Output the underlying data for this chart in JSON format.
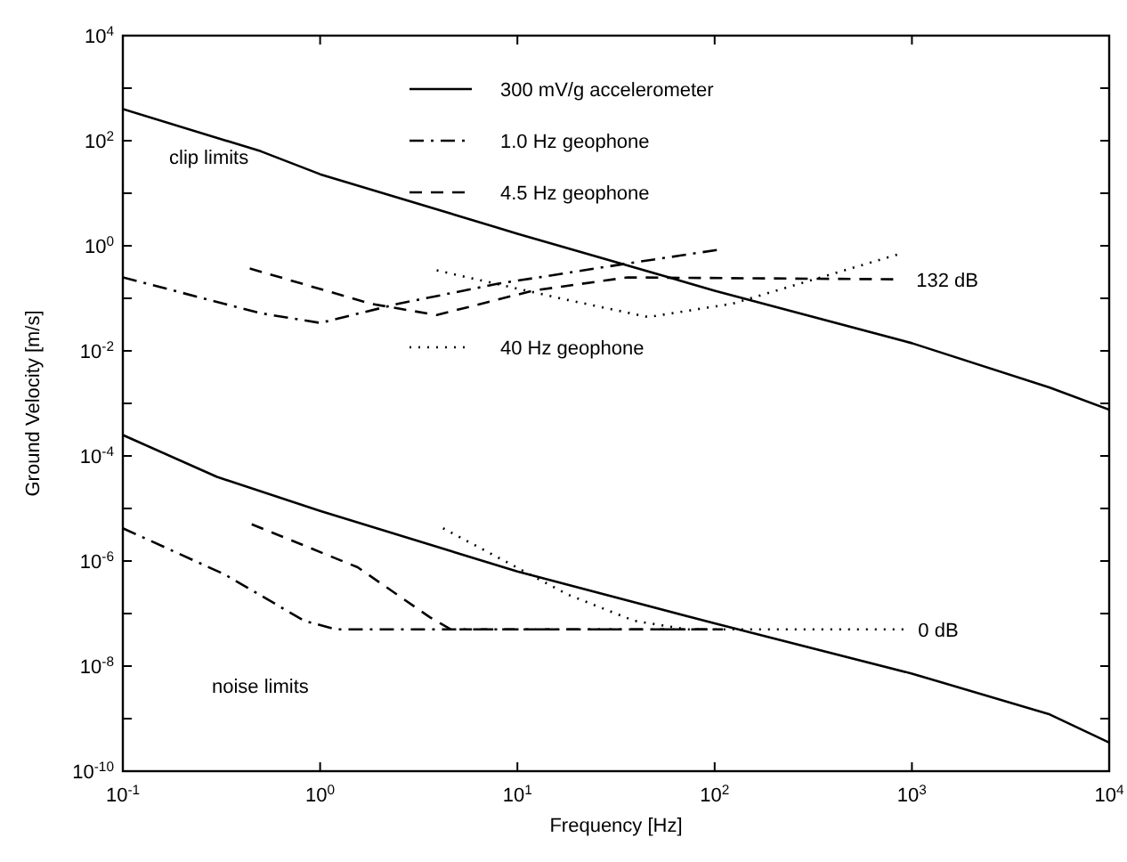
{
  "chart_data": {
    "type": "line",
    "xlabel": "Frequency [Hz]",
    "ylabel": "Ground Velocity [m/s]",
    "log": "xy",
    "grid": false,
    "legend": "top",
    "xlim": [
      0.1,
      10000
    ],
    "ylim": [
      1e-10,
      10000
    ],
    "xticks": [
      {
        "value": 0.1,
        "label": "10$^{-1}$"
      },
      {
        "value": 1,
        "label": "10$^{0}$"
      },
      {
        "value": 10,
        "label": "10$^{1}$"
      },
      {
        "value": 100,
        "label": "10$^{2}$"
      },
      {
        "value": 1000,
        "label": "10$^{3}$"
      },
      {
        "value": 10000,
        "label": "10$^{4}$"
      }
    ],
    "yticks": [
      {
        "value": 1e-10,
        "label": "10$^{-10}$"
      },
      {
        "value": 1e-09,
        "label": null
      },
      {
        "value": 1e-08,
        "label": "10$^{-8}$"
      },
      {
        "value": 1e-07,
        "label": null
      },
      {
        "value": 1e-06,
        "label": "10$^{-6}$"
      },
      {
        "value": 1e-05,
        "label": null
      },
      {
        "value": 0.0001,
        "label": "10$^{-4}$"
      },
      {
        "value": 0.001,
        "label": null
      },
      {
        "value": 0.01,
        "label": "10$^{-2}$"
      },
      {
        "value": 0.1,
        "label": null
      },
      {
        "value": 1,
        "label": "10$^{0}$"
      },
      {
        "value": 10,
        "label": null
      },
      {
        "value": 100,
        "label": "10$^{2}$"
      },
      {
        "value": 1000,
        "label": null
      },
      {
        "value": 10000,
        "label": "10$^{4}$"
      }
    ],
    "series": [
      {
        "name": "300 mV/g accelerometer",
        "color": "#000000",
        "line_style": "solid",
        "x": [
          0.1,
          0.5,
          1,
          10,
          100,
          1000,
          5000,
          10000,
          null,
          0.1,
          0.3,
          1,
          10,
          100,
          1000,
          5000,
          10000
        ],
        "values": [
          400,
          63,
          23,
          1.7,
          0.14,
          0.014,
          0.002,
          0.00076,
          null,
          0.00025,
          4e-05,
          9e-06,
          6.3e-07,
          6.5e-08,
          7.2e-09,
          1.2e-09,
          3.5e-10
        ]
      },
      {
        "name": "1.0 Hz geophone",
        "color": "#000000",
        "line_style": "dashdot",
        "x": [
          0.1,
          0.5,
          1,
          2.5,
          8,
          36,
          107,
          null,
          0.1,
          0.33,
          0.83,
          1.2,
          107
        ],
        "values": [
          0.25,
          0.052,
          0.034,
          0.079,
          0.19,
          0.46,
          0.85,
          null,
          4.2e-06,
          5.5e-07,
          7.3e-08,
          5e-08,
          5e-08
        ]
      },
      {
        "name": "4.5 Hz geophone",
        "color": "#000000",
        "line_style": "dashed",
        "x": [
          0.44,
          1.8,
          3.9,
          12,
          36,
          890,
          null,
          0.45,
          1.55,
          3.6,
          4.6,
          110
        ],
        "values": [
          0.37,
          0.079,
          0.048,
          0.14,
          0.25,
          0.23,
          null,
          5e-06,
          7.6e-07,
          8.5e-08,
          5e-08,
          5e-08
        ]
      },
      {
        "name": "40 Hz geophone",
        "color": "#000000",
        "line_style": "dotted",
        "x": [
          3.9,
          18,
          46,
          123,
          910,
          null,
          4.2,
          18,
          39,
          72,
          910
        ],
        "values": [
          0.34,
          0.093,
          0.044,
          0.079,
          0.74,
          null,
          4.2e-06,
          2.3e-07,
          7.3e-08,
          5e-08,
          5e-08
        ]
      }
    ],
    "annotations": [
      "clip limits",
      "noise limits",
      {
        "text": "132 dB",
        "x": 890,
        "y": 0.23
      },
      {
        "text": "0 dB",
        "x": 910,
        "y": 5e-08
      }
    ]
  }
}
